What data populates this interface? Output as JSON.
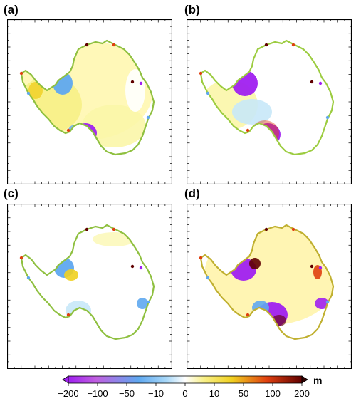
{
  "panels": [
    {
      "label": "(a)"
    },
    {
      "label": "(b)"
    },
    {
      "label": "(c)"
    },
    {
      "label": "(d)"
    }
  ],
  "colorbar": {
    "unit": "m",
    "ticks": [
      "−200",
      "−100",
      "−50",
      "−10",
      "0",
      "10",
      "50",
      "100",
      "200"
    ],
    "colors": [
      "#a020f0",
      "#c060e0",
      "#5fa8f0",
      "#a8d8f8",
      "#ffffff",
      "#f8f088",
      "#f0d020",
      "#e04010",
      "#600000"
    ]
  }
}
